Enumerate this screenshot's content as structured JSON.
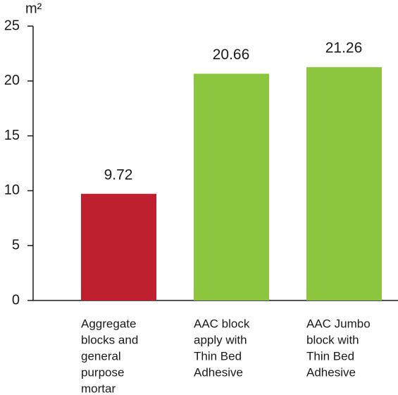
{
  "chart_data": {
    "type": "bar",
    "y_unit": "m²",
    "categories": [
      [
        "Aggregate",
        "blocks and",
        "general",
        "purpose",
        "mortar"
      ],
      [
        "AAC block",
        "apply with",
        "Thin Bed",
        "Adhesive"
      ],
      [
        "AAC Jumbo",
        "block with",
        "Thin Bed",
        "Adhesive"
      ]
    ],
    "values": [
      9.72,
      20.66,
      21.26
    ],
    "colors": [
      "#c01f2f",
      "#8cc63f",
      "#8cc63f"
    ],
    "ylim": [
      0,
      25
    ],
    "yticks": [
      0,
      5,
      10,
      15,
      20,
      25
    ],
    "grid": false
  }
}
